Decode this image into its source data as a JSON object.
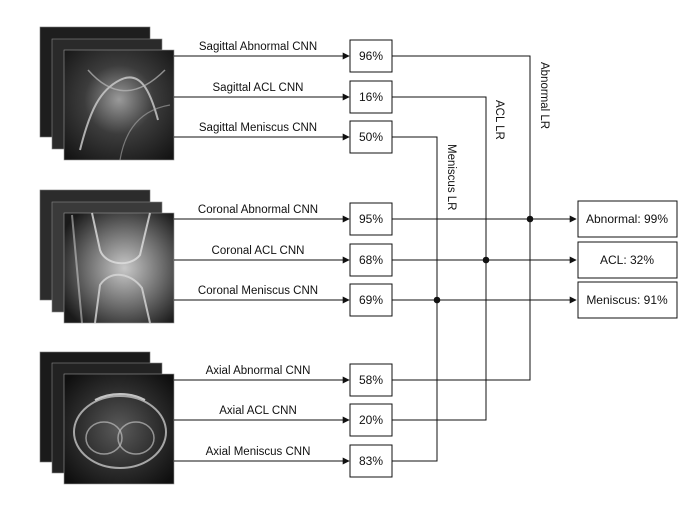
{
  "sagittal": {
    "abnormal": {
      "label": "Sagittal Abnormal CNN",
      "value": "96%"
    },
    "acl": {
      "label": "Sagittal ACL CNN",
      "value": "16%"
    },
    "meniscus": {
      "label": "Sagittal Meniscus CNN",
      "value": "50%"
    }
  },
  "coronal": {
    "abnormal": {
      "label": "Coronal Abnormal CNN",
      "value": "95%"
    },
    "acl": {
      "label": "Coronal ACL CNN",
      "value": "68%"
    },
    "meniscus": {
      "label": "Coronal Meniscus CNN",
      "value": "69%"
    }
  },
  "axial": {
    "abnormal": {
      "label": "Axial Abnormal CNN",
      "value": "58%"
    },
    "acl": {
      "label": "Axial ACL CNN",
      "value": "20%"
    },
    "meniscus": {
      "label": "Axial Meniscus CNN",
      "value": "83%"
    }
  },
  "lr": {
    "abnormal": "Abnormal LR",
    "acl": "ACL LR",
    "meniscus": "Meniscus LR"
  },
  "outputs": {
    "abnormal": "Abnormal: 99%",
    "acl": "ACL: 32%",
    "meniscus": "Meniscus: 91%"
  }
}
